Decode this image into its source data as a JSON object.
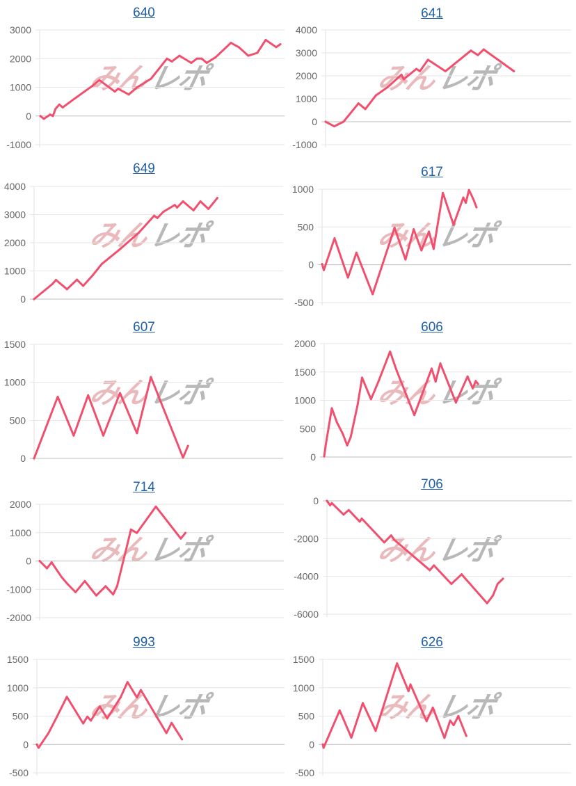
{
  "watermark": {
    "part1": "みん",
    "part2": "レポ"
  },
  "colors": {
    "line": "#f0506e",
    "title": "#1f5fa6",
    "grid": "#e6e6e6",
    "zero": "#bdbdbd",
    "tick": "#666666"
  },
  "chart_data": [
    {
      "type": "line",
      "title": "640",
      "ylim": [
        -1000,
        3000
      ],
      "xlim": [
        0,
        100
      ],
      "yticks": [
        "3000",
        "2000",
        "1000",
        "0",
        "-1000"
      ],
      "x": [
        0.3,
        1.7,
        4.3,
        5.4,
        6.5,
        8,
        9.4,
        15,
        21.6,
        24.4,
        30.7,
        32,
        36.4,
        39.8,
        45.5,
        46.9,
        52,
        54,
        57.1,
        61.9,
        64.2,
        66.2,
        68.2,
        71.9,
        78.1,
        81.3,
        85.2,
        88.9,
        92.3,
        96.6,
        98.3
      ],
      "y": [
        0,
        -100,
        50,
        0,
        250,
        400,
        300,
        650,
        1050,
        1250,
        850,
        950,
        750,
        1000,
        1300,
        1450,
        2000,
        1900,
        2100,
        1850,
        2000,
        2000,
        1850,
        2050,
        2550,
        2400,
        2100,
        2200,
        2650,
        2400,
        2500
      ]
    },
    {
      "type": "line",
      "title": "641",
      "ylim": [
        -1000,
        4000
      ],
      "xlim": [
        0,
        100
      ],
      "yticks": [
        "4000",
        "3000",
        "2000",
        "1000",
        "0",
        "-1000"
      ],
      "x": [
        0,
        3.5,
        7.3,
        13.4,
        16.2,
        20.5,
        25.2,
        30.9,
        31.8,
        37,
        38.4,
        41.7,
        48.8,
        59.2,
        62,
        64.4,
        76.7
      ],
      "y": [
        0,
        -200,
        0,
        800,
        550,
        1150,
        1500,
        2050,
        1850,
        2300,
        2200,
        2700,
        2200,
        3100,
        2900,
        3150,
        2200
      ]
    },
    {
      "type": "line",
      "title": "649",
      "ylim": [
        0,
        4000
      ],
      "xlim": [
        0,
        100
      ],
      "yticks": [
        "4000",
        "3000",
        "2000",
        "1000",
        "0"
      ],
      "x": [
        0,
        7.3,
        8.8,
        13.2,
        17.2,
        19.7,
        23.5,
        27.2,
        34.6,
        42.1,
        48.2,
        49.5,
        51.9,
        56.5,
        57.4,
        59.8,
        64,
        66.8,
        70,
        73.6
      ],
      "y": [
        0,
        530,
        680,
        350,
        690,
        470,
        840,
        1250,
        1780,
        2360,
        2960,
        2880,
        3100,
        3340,
        3250,
        3470,
        3150,
        3470,
        3200,
        3590
      ]
    },
    {
      "type": "line",
      "title": "617",
      "ylim": [
        -500,
        1000
      ],
      "xlim": [
        0,
        100
      ],
      "yticks": [
        "1000",
        "500",
        "0",
        "-500"
      ],
      "x": [
        0,
        0.7,
        5,
        10.4,
        13.8,
        20.3,
        29.1,
        33.5,
        36.8,
        39.9,
        42.9,
        44.8,
        48.5,
        52.8,
        56.7,
        57.7,
        59,
        60.7,
        62
      ],
      "y": [
        10,
        -70,
        350,
        -170,
        160,
        -390,
        490,
        70,
        470,
        190,
        440,
        210,
        950,
        530,
        890,
        820,
        990,
        870,
        760
      ]
    },
    {
      "type": "line",
      "title": "607",
      "ylim": [
        0,
        1500
      ],
      "xlim": [
        0,
        100
      ],
      "yticks": [
        "1500",
        "1000",
        "500",
        "0"
      ],
      "x": [
        0,
        9.5,
        15.9,
        21.7,
        27.8,
        34.5,
        41.3,
        46.9,
        59.8,
        61.8
      ],
      "y": [
        0,
        810,
        300,
        830,
        300,
        860,
        330,
        1070,
        10,
        165
      ]
    },
    {
      "type": "line",
      "title": "606",
      "ylim": [
        0,
        2000
      ],
      "xlim": [
        0,
        100
      ],
      "yticks": [
        "2000",
        "1500",
        "1000",
        "500",
        "0"
      ],
      "x": [
        0,
        0.7,
        3.1,
        5.1,
        7.5,
        9.3,
        10.7,
        13.5,
        15.3,
        18.9,
        21.9,
        26.6,
        29.3,
        36.4,
        43.4,
        45,
        46.9,
        53.2,
        57.9,
        60,
        61.2,
        62.1
      ],
      "y": [
        10,
        230,
        860,
        615,
        410,
        205,
        350,
        920,
        1400,
        1020,
        1330,
        1860,
        1520,
        740,
        1560,
        1330,
        1650,
        960,
        1420,
        1210,
        1340,
        1290
      ]
    },
    {
      "type": "line",
      "title": "714",
      "ylim": [
        -2000,
        2000
      ],
      "xlim": [
        0,
        100
      ],
      "yticks": [
        "2000",
        "1000",
        "0",
        "-1000",
        "-2000"
      ],
      "x": [
        0,
        3,
        4.9,
        9,
        11.4,
        14.7,
        18.5,
        23.2,
        27,
        30.1,
        31.7,
        37.4,
        39.8,
        47.6,
        57.8,
        59.7
      ],
      "y": [
        0,
        -260,
        -50,
        -570,
        -810,
        -1100,
        -710,
        -1220,
        -890,
        -1180,
        -890,
        1110,
        990,
        1920,
        790,
        990
      ]
    },
    {
      "type": "line",
      "title": "706",
      "ylim": [
        -6000,
        0
      ],
      "xlim": [
        0,
        100
      ],
      "yticks": [
        "0",
        "-2000",
        "-4000",
        "-6000"
      ],
      "x": [
        0,
        1.3,
        2,
        6.8,
        8.9,
        13.4,
        14.2,
        23.4,
        26.2,
        27.6,
        42,
        43.7,
        50.8,
        55,
        65.4,
        67.8,
        69.7,
        71.9
      ],
      "y": [
        0,
        -240,
        -120,
        -730,
        -490,
        -1100,
        -940,
        -2200,
        -1830,
        -2080,
        -3670,
        -3420,
        -4400,
        -3890,
        -5420,
        -5010,
        -4400,
        -4120
      ]
    },
    {
      "type": "line",
      "title": "993",
      "ylim": [
        -500,
        1500
      ],
      "xlim": [
        0,
        100
      ],
      "yticks": [
        "1500",
        "1000",
        "500",
        "0",
        "-500"
      ],
      "x": [
        0,
        0.7,
        4.7,
        8,
        12.1,
        18.7,
        20.4,
        21.8,
        25.4,
        28.4,
        33.8,
        36.6,
        40.4,
        42,
        52.3,
        54.4,
        58.6
      ],
      "y": [
        0,
        -60,
        200,
        480,
        840,
        370,
        490,
        420,
        670,
        460,
        830,
        1100,
        830,
        960,
        200,
        380,
        90
      ]
    },
    {
      "type": "line",
      "title": "626",
      "ylim": [
        -500,
        1500
      ],
      "xlim": [
        0,
        100
      ],
      "yticks": [
        "1500",
        "1000",
        "500",
        "0",
        "-500"
      ],
      "x": [
        0,
        0.3,
        6.8,
        11.5,
        16.1,
        21.3,
        29.9,
        34.5,
        35.3,
        41.8,
        44.3,
        49,
        51.3,
        52.7,
        54.6,
        57.8
      ],
      "y": [
        0,
        -60,
        600,
        120,
        730,
        240,
        1430,
        940,
        1060,
        410,
        650,
        115,
        420,
        340,
        500,
        150
      ]
    }
  ]
}
